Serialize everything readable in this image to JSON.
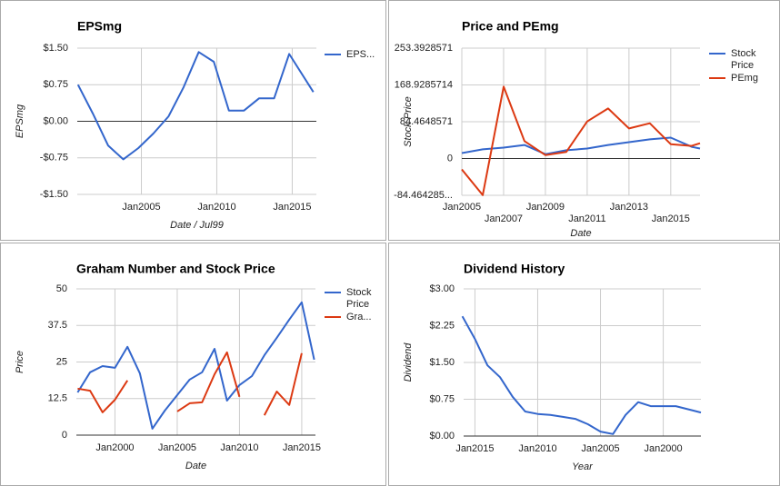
{
  "chart_data": [
    {
      "type": "line",
      "title": "EPSmg",
      "x_label": "Date / Jul99",
      "y_label": "EPSmg",
      "x": [
        2000.8,
        2001.8,
        2002.8,
        2003.8,
        2004.8,
        2005.8,
        2006.8,
        2007.8,
        2008.8,
        2009.8,
        2010.8,
        2011.8,
        2012.8,
        2013.8,
        2014.8,
        2016.4
      ],
      "series": [
        {
          "name": "EPS...",
          "color": "#3366cc",
          "values": [
            0.75,
            0.15,
            -0.5,
            -0.78,
            -0.55,
            -0.25,
            0.1,
            0.7,
            1.42,
            1.22,
            0.22,
            0.22,
            0.47,
            0.47,
            1.38,
            0.6
          ]
        }
      ],
      "xlim": [
        2000.75,
        2016.6
      ],
      "xticks": [
        {
          "value": 2005,
          "label": "Jan2005"
        },
        {
          "value": 2010,
          "label": "Jan2010"
        },
        {
          "value": 2015,
          "label": "Jan2015"
        }
      ],
      "ylim": [
        -1.5,
        1.5
      ],
      "yticks": [
        {
          "value": 1.5,
          "label": "$1.50"
        },
        {
          "value": 0.75,
          "label": "$0.75"
        },
        {
          "value": 0,
          "label": "$0.00"
        },
        {
          "value": -0.75,
          "label": "-$0.75"
        },
        {
          "value": -1.5,
          "label": "-$1.50"
        }
      ],
      "grid": true,
      "legend": "right"
    },
    {
      "type": "line",
      "title": "Price and PEmg",
      "x_label": "Date",
      "y_label": "Stock Price",
      "x": [
        2005,
        2006,
        2007,
        2008,
        2009,
        2010,
        2011,
        2012,
        2013,
        2014,
        2015,
        2016,
        2016.4
      ],
      "series": [
        {
          "name": "Stock Price",
          "color": "#3366cc",
          "values": [
            12.5,
            21,
            25,
            31,
            10,
            19,
            23,
            31,
            37.5,
            44,
            48,
            27,
            23
          ]
        },
        {
          "name": "PEmg",
          "color": "#dc3912",
          "values": [
            -25,
            -84,
            165,
            40,
            8,
            15,
            85,
            115,
            69,
            81,
            33,
            29,
            35
          ]
        }
      ],
      "xlim": [
        2005,
        2016.4
      ],
      "xticks": [
        {
          "value": 2005,
          "label": "Jan2005"
        },
        {
          "value": 2007,
          "label": "Jan2007"
        },
        {
          "value": 2009,
          "label": "Jan2009"
        },
        {
          "value": 2011,
          "label": "Jan2011"
        },
        {
          "value": 2013,
          "label": "Jan2013"
        },
        {
          "value": 2015,
          "label": "Jan2015"
        }
      ],
      "ylim": [
        -84.4642857,
        253.3928571
      ],
      "yticks": [
        253.3928571,
        168.9285714,
        84.4648571,
        0,
        {
          "value": -84.4642857,
          "label": "-84.464285..."
        }
      ],
      "grid": true,
      "legend": "right"
    },
    {
      "type": "line",
      "title": "Graham Number and Stock Price",
      "x_label": "Date",
      "y_label": "Price",
      "x": [
        1997,
        1998,
        1999,
        2000,
        2001,
        2002,
        2003,
        2004,
        2005,
        2006,
        2007,
        2008,
        2009,
        2010,
        2011,
        2012,
        2013,
        2014,
        2015,
        2016
      ],
      "series": [
        {
          "name": "Stock Price",
          "color": "#3366cc",
          "values": [
            14.6,
            21.5,
            23.6,
            23,
            30.2,
            21.1,
            2.2,
            8.4,
            13.7,
            19,
            21.5,
            29.5,
            11.8,
            17.1,
            20.2,
            27.3,
            33.3,
            39.5,
            45.4,
            25.8
          ]
        },
        {
          "name": "Gra...",
          "color": "#dc3912",
          "values": [
            15.9,
            15.2,
            7.8,
            12.1,
            18.7,
            null,
            null,
            null,
            8.1,
            10.9,
            11.2,
            20.8,
            28.3,
            13.1,
            null,
            6.8,
            14.9,
            10.3,
            28,
            null
          ]
        }
      ],
      "xlim": [
        1996.9,
        2016.1
      ],
      "xticks": [
        {
          "value": 2000,
          "label": "Jan2000"
        },
        {
          "value": 2005,
          "label": "Jan2005"
        },
        {
          "value": 2010,
          "label": "Jan2010"
        },
        {
          "value": 2015,
          "label": "Jan2015"
        }
      ],
      "ylim": [
        0,
        50
      ],
      "yticks": [
        50,
        37.5,
        25,
        12.5,
        0
      ],
      "grid": true,
      "legend": "right"
    },
    {
      "type": "line",
      "title": "Dividend History",
      "x_label": "Year",
      "y_label": "Dividend",
      "x": [
        2016,
        2015,
        2014,
        2013,
        2012,
        2011,
        2010,
        2009,
        2008,
        2007,
        2006,
        2005,
        2004,
        2003,
        2002,
        2001,
        2000,
        1999,
        1997
      ],
      "series": [
        {
          "name": "Dividend",
          "color": "#3366cc",
          "values": [
            2.44,
            1.98,
            1.44,
            1.2,
            0.8,
            0.5,
            0.45,
            0.43,
            0.39,
            0.35,
            0.24,
            0.09,
            0.04,
            0.43,
            0.69,
            0.61,
            0.61,
            0.61,
            0.48
          ]
        }
      ],
      "xlim": [
        2015.9,
        1997
      ],
      "xticks": [
        {
          "value": 2015,
          "label": "Jan2015"
        },
        {
          "value": 2010,
          "label": "Jan2010"
        },
        {
          "value": 2005,
          "label": "Jan2005"
        },
        {
          "value": 2000,
          "label": "Jan2000"
        }
      ],
      "ylim": [
        0,
        3
      ],
      "yticks": [
        {
          "value": 3,
          "label": "$3.00"
        },
        {
          "value": 2.25,
          "label": "$2.25"
        },
        {
          "value": 1.5,
          "label": "$1.50"
        },
        {
          "value": 0.75,
          "label": "$0.75"
        },
        {
          "value": 0,
          "label": "$0.00"
        }
      ],
      "grid": true,
      "legend": "none"
    }
  ]
}
